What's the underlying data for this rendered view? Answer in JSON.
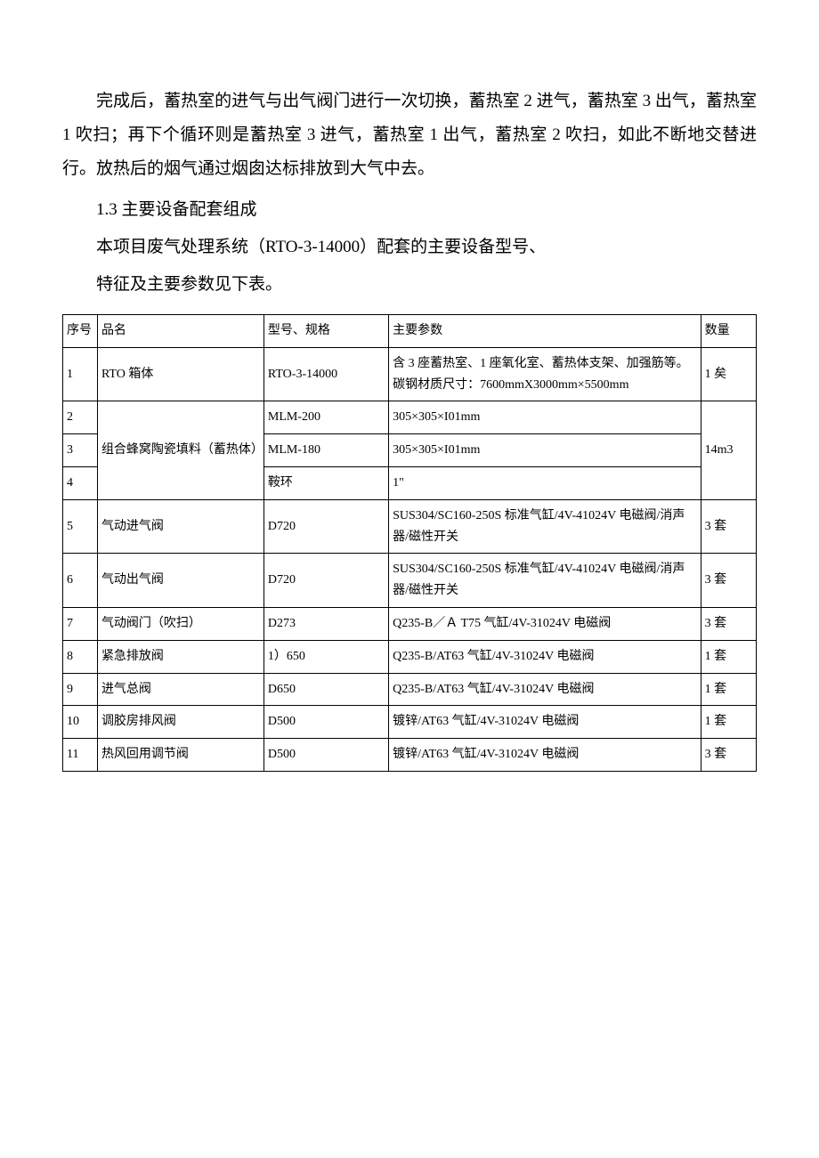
{
  "paragraph1": "完成后，蓄热室的进气与出气阀门进行一次切换，蓄热室 2 进气，蓄热室 3 出气，蓄热室 1 吹扫；再下个循环则是蓄热室 3 进气，蓄热室 1 出气，蓄热室 2 吹扫，如此不断地交替进行。放热后的烟气通过烟囱达标排放到大气中去。",
  "sectionHeading": "1.3 主要设备配套组成",
  "tableIntro1": "本项目废气处理系统（RTO-3-14000）配套的主要设备型号、",
  "tableIntro2": "特征及主要参数见下表。",
  "table": {
    "colors": {
      "border": "#000000",
      "background": "#ffffff",
      "text": "#000000"
    },
    "fontSize": 14,
    "headers": {
      "seq": "序号",
      "name": "品名",
      "model": "型号、规格",
      "param": "主要参数",
      "qty": "数量"
    },
    "rows": [
      {
        "seq": "1",
        "name": "RTO 箱体",
        "model": "RTO-3-14000",
        "param": "含 3 座蓄热室、1 座氧化室、蓄热体支架、加强筋等。碳钢材质尺寸：7600mmX3000mm×5500mm",
        "qty": "1 矣"
      },
      {
        "seq": "2",
        "nameMerged": "组合蜂窝陶瓷填料（蓄热体）",
        "model": "MLM-200",
        "param": "305×305×I01mm",
        "qtyMerged": "14m3"
      },
      {
        "seq": "3",
        "model": "MLM-180",
        "param": "305×305×I01mm"
      },
      {
        "seq": "4",
        "model": "鞍环",
        "param": "1\""
      },
      {
        "seq": "5",
        "name": "气动进气阀",
        "model": "D720",
        "param": "SUS304/SC160-250S 标准气缸/4V-41024V 电磁阀/消声器/磁性开关",
        "qty": "3 套"
      },
      {
        "seq": "6",
        "name": "气动出气阀",
        "model": "D720",
        "param": "SUS304/SC160-250S 标准气缸/4V-41024V 电磁阀/消声器/磁性开关",
        "qty": "3 套"
      },
      {
        "seq": "7",
        "name": "气动阀门（吹扫）",
        "model": "D273",
        "param": "Q235-B／Ａ T75 气缸/4V-31024V 电磁阀",
        "qty": "3 套"
      },
      {
        "seq": "8",
        "name": "紧急排放阀",
        "model": "1）650",
        "param": "Q235-B/AT63 气缸/4V-31024V 电磁阀",
        "qty": "1 套"
      },
      {
        "seq": "9",
        "name": "进气总阀",
        "model": "D650",
        "param": "Q235-B/AT63 气缸/4V-31024V 电磁阀",
        "qty": "1 套"
      },
      {
        "seq": "10",
        "name": "调胶房排风阀",
        "model": "D500",
        "param": "镀锌/AT63 气缸/4V-31024V 电磁阀",
        "qty": "1 套"
      },
      {
        "seq": "11",
        "name": "热风回用调节阀",
        "model": "D500",
        "param": "镀锌/AT63 气缸/4V-31024V 电磁阀",
        "qty": "3 套"
      }
    ]
  }
}
